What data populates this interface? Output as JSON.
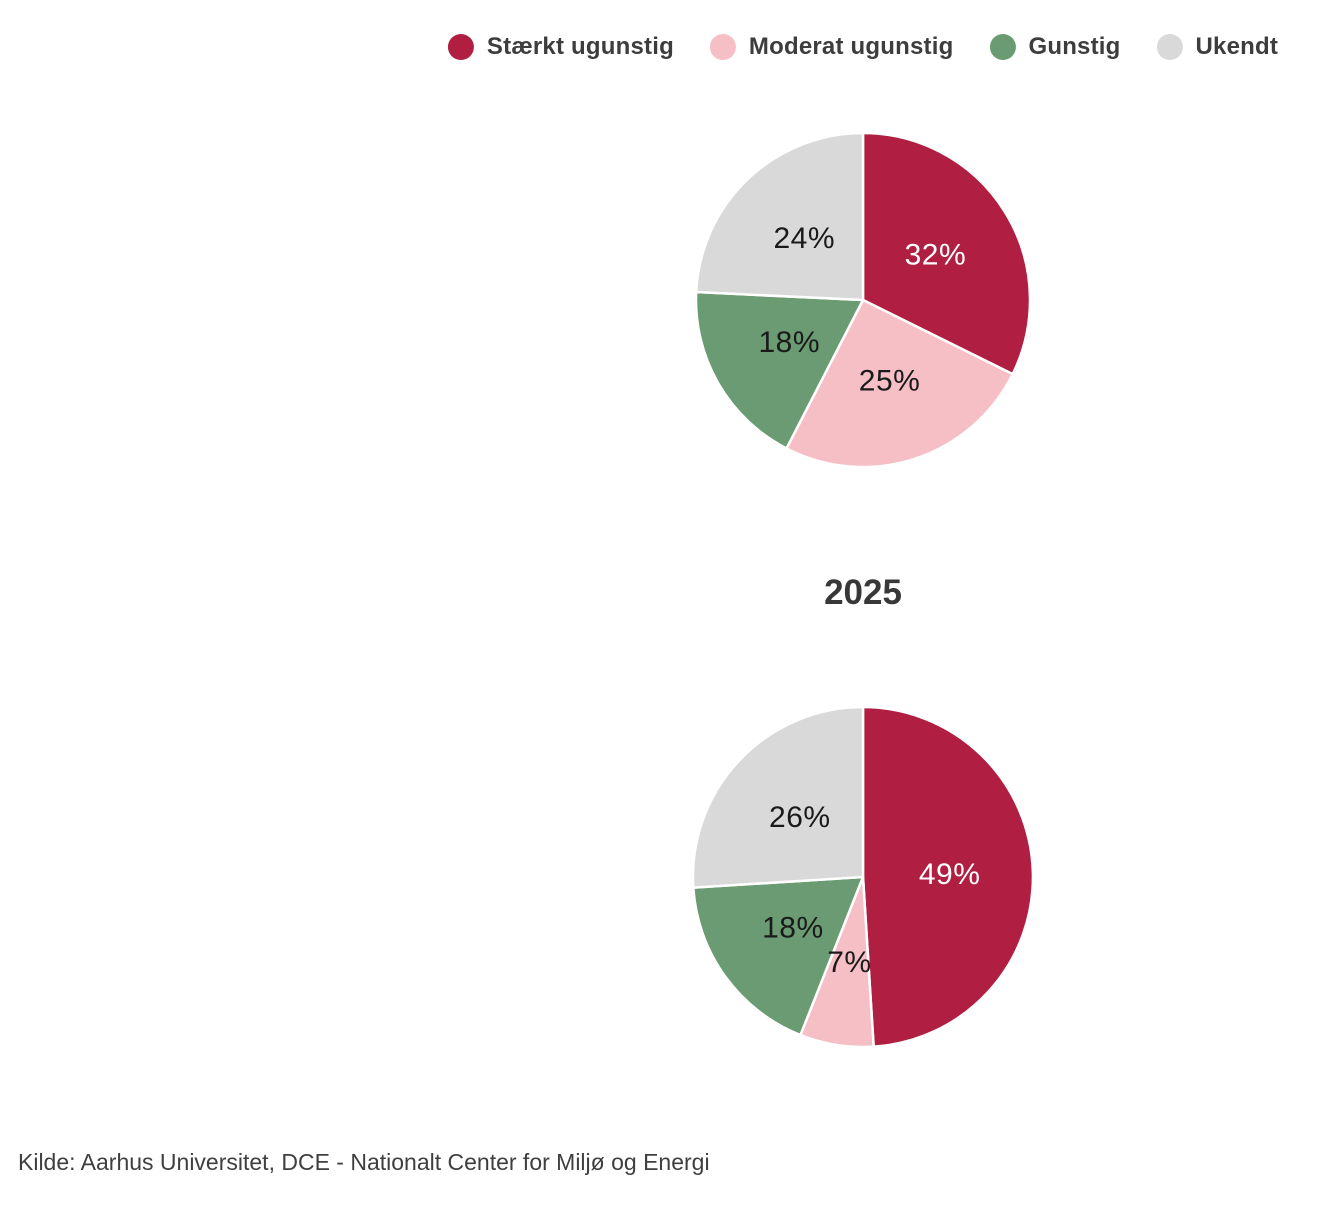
{
  "legend": {
    "items": [
      {
        "label": "Stærkt ugunstig",
        "color": "#b01e41"
      },
      {
        "label": "Moderat ugunstig",
        "color": "#f5bfc5"
      },
      {
        "label": "Gunstig",
        "color": "#6b9b73"
      },
      {
        "label": "Ukendt",
        "color": "#d9d9d9"
      }
    ]
  },
  "section_title": "2025",
  "source": "Kilde: Aarhus Universitet, DCE - Nationalt Center for Miljø og Energi",
  "colors": {
    "staerkt_ugunstig": "#b01e41",
    "moderat_ugunstig": "#f5bfc5",
    "gunstig": "#6b9b73",
    "ukendt": "#d9d9d9",
    "label_on_dark": "#ffffff",
    "label_on_light": "#1a1a1a",
    "legend_text": "#3d3d3d"
  },
  "chart_data": [
    {
      "type": "pie",
      "title": "",
      "categories": [
        "Stærkt ugunstig",
        "Moderat ugunstig",
        "Gunstig",
        "Ukendt"
      ],
      "values": [
        32,
        25,
        18,
        24
      ],
      "labels": [
        "32%",
        "25%",
        "18%",
        "24%"
      ],
      "colors": [
        "#b01e41",
        "#f5bfc5",
        "#6b9b73",
        "#d9d9d9"
      ],
      "label_colors": [
        "#ffffff",
        "#1a1a1a",
        "#1a1a1a",
        "#1a1a1a"
      ],
      "start_angle_deg": 0,
      "direction": "clockwise",
      "legend_position": "top"
    },
    {
      "type": "pie",
      "title": "2025",
      "categories": [
        "Stærkt ugunstig",
        "Moderat ugunstig",
        "Gunstig",
        "Ukendt"
      ],
      "values": [
        49,
        7,
        18,
        26
      ],
      "labels": [
        "49%",
        "7%",
        "18%",
        "26%"
      ],
      "colors": [
        "#b01e41",
        "#f5bfc5",
        "#6b9b73",
        "#d9d9d9"
      ],
      "label_colors": [
        "#ffffff",
        "#1a1a1a",
        "#1a1a1a",
        "#1a1a1a"
      ],
      "start_angle_deg": 0,
      "direction": "clockwise",
      "legend_position": "top"
    }
  ]
}
